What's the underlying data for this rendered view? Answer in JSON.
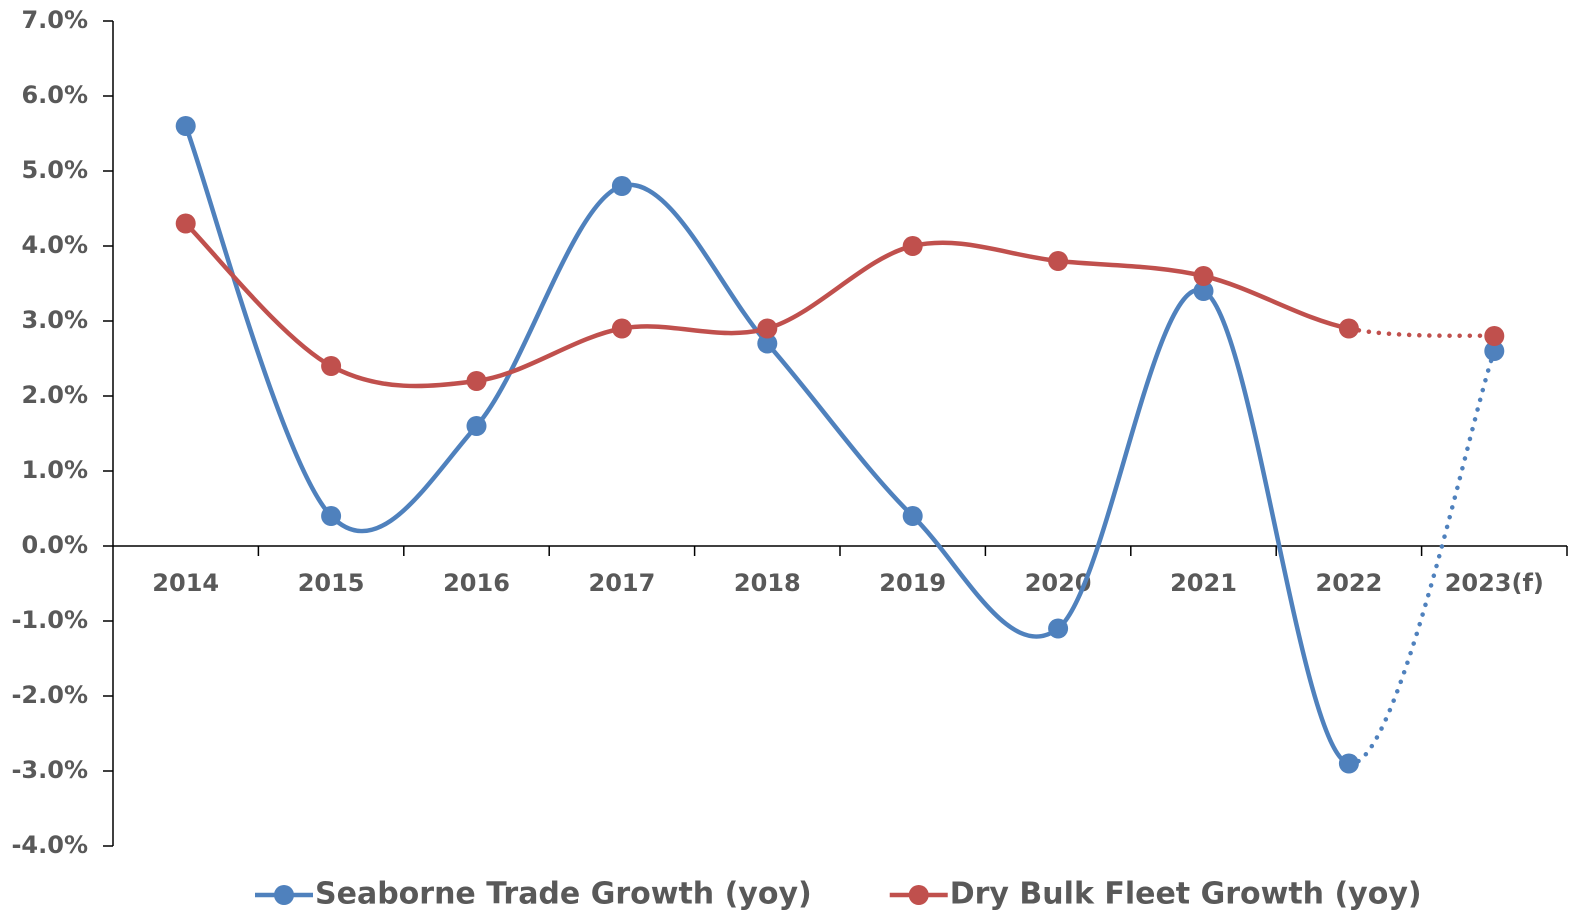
{
  "chart_data": {
    "type": "line",
    "categories": [
      "2014",
      "2015",
      "2016",
      "2017",
      "2018",
      "2019",
      "2020",
      "2021",
      "2022",
      "2023(f)"
    ],
    "series": [
      {
        "name": "Seaborne Trade Growth (yoy)",
        "color": "#4f81bd",
        "values": [
          5.6,
          0.4,
          1.6,
          4.8,
          2.7,
          0.4,
          -1.1,
          3.4,
          -2.9,
          2.6
        ]
      },
      {
        "name": "Dry Bulk Fleet Growth (yoy)",
        "color": "#c0504d",
        "values": [
          4.3,
          2.4,
          2.2,
          2.9,
          2.9,
          4.0,
          3.8,
          3.6,
          2.9,
          2.8
        ]
      }
    ],
    "ylim": [
      -4,
      7
    ],
    "yticks": [
      {
        "value": -4,
        "label": "-4.0%"
      },
      {
        "value": -3,
        "label": "-3.0%"
      },
      {
        "value": -2,
        "label": "-2.0%"
      },
      {
        "value": -1,
        "label": "-1.0%"
      },
      {
        "value": 0,
        "label": "0.0%"
      },
      {
        "value": 1,
        "label": "1.0%"
      },
      {
        "value": 2,
        "label": "2.0%"
      },
      {
        "value": 3,
        "label": "3.0%"
      },
      {
        "value": 4,
        "label": "4.0%"
      },
      {
        "value": 5,
        "label": "5.0%"
      },
      {
        "value": 6,
        "label": "6.0%"
      },
      {
        "value": 7,
        "label": "7.0%"
      }
    ],
    "smooth": true,
    "last_segment_style": "dotted",
    "legend": "bottom"
  }
}
